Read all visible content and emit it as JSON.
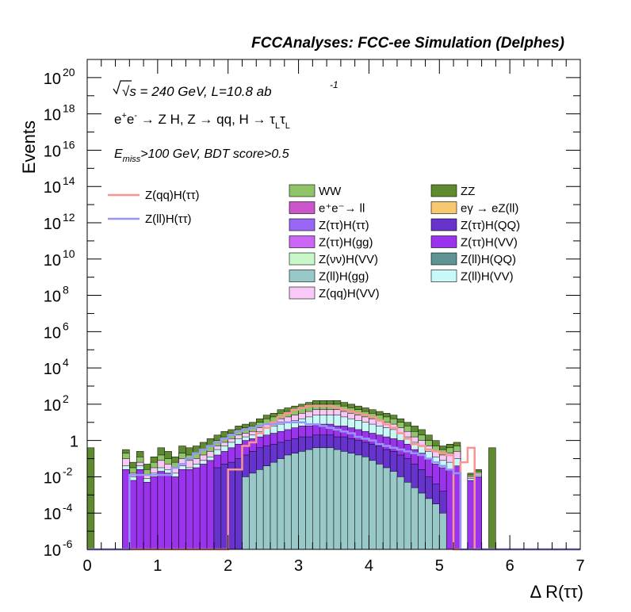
{
  "chart_data": {
    "type": "bar",
    "stacked": true,
    "title": "FCCAnalyses: FCC-ee Simulation (Delphes)",
    "xlabel": "Δ R(ττ)",
    "ylabel": "Events",
    "xlim": [
      0,
      7
    ],
    "ylim": [
      1e-06,
      1e+21
    ],
    "ylog": true,
    "grid": false,
    "legend_position": "upper-middle",
    "annotations": {
      "energy": "√s = 240 GeV, L=10.8 ab",
      "energy_exp": "-1",
      "process": "e⁺e⁻ → Z H, Z → qq, H → τLτL",
      "process_pre": "e",
      "process_mid": "e",
      "process_post": " → Z H, Z  → qq, H  → ",
      "tau": "τ",
      "tau_sub": "L",
      "cut_pre": "E",
      "cut_sub": "miss",
      "cut_post": ">100 GeV, BDT score>0.5"
    },
    "x_ticks": [
      "0",
      "1",
      "2",
      "3",
      "4",
      "5",
      "6",
      "7"
    ],
    "y_ticks": [
      "10^-6",
      "10^-4",
      "10^-2",
      "1",
      "10^2",
      "10^4",
      "10^6",
      "10^8",
      "10^10",
      "10^12",
      "10^14",
      "10^16",
      "10^18",
      "10^20"
    ],
    "y_tick_labels": [
      {
        "base": "10",
        "exp": "-6"
      },
      {
        "base": "10",
        "exp": "-4"
      },
      {
        "base": "10",
        "exp": "-2"
      },
      {
        "base": "1",
        "exp": ""
      },
      {
        "base": "10",
        "exp": "2"
      },
      {
        "base": "10",
        "exp": "4"
      },
      {
        "base": "10",
        "exp": "6"
      },
      {
        "base": "10",
        "exp": "8"
      },
      {
        "base": "10",
        "exp": "10"
      },
      {
        "base": "10",
        "exp": "12"
      },
      {
        "base": "10",
        "exp": "14"
      },
      {
        "base": "10",
        "exp": "16"
      },
      {
        "base": "10",
        "exp": "18"
      },
      {
        "base": "10",
        "exp": "20"
      }
    ],
    "bin_width": 0.1,
    "stack_top_log10": [
      -0.4,
      -6,
      -6,
      -6,
      -6,
      -0.5,
      -1.2,
      -0.6,
      -1.3,
      -0.9,
      -0.4,
      -0.6,
      -0.9,
      -0.3,
      -0.4,
      -0.3,
      -0.1,
      0.1,
      0.3,
      0.5,
      0.6,
      0.8,
      0.9,
      1.0,
      1.2,
      1.4,
      1.5,
      1.7,
      1.8,
      1.9,
      2.0,
      2.1,
      2.2,
      2.2,
      2.2,
      2.2,
      2.1,
      2.0,
      1.9,
      1.8,
      1.7,
      1.6,
      1.5,
      1.4,
      1.2,
      1.0,
      0.8,
      0.6,
      0.3,
      0.0,
      -0.3,
      -0.2,
      -0.1,
      -6,
      -1.8,
      -1.6,
      -6,
      -0.4,
      -6,
      -6,
      -6,
      -6,
      -6,
      -6,
      -6,
      -6,
      -6,
      -6,
      -6,
      -6
    ],
    "stack_layers": [
      {
        "name": "ZZ",
        "color": "#5e8a30",
        "log10": [
          -0.4,
          -6,
          -6,
          -6,
          -6,
          -0.5,
          -1.2,
          -0.6,
          -1.3,
          -0.9,
          -0.4,
          -0.6,
          -0.9,
          -0.3,
          -0.4,
          -0.3,
          -0.1,
          0.1,
          0.3,
          0.5,
          0.6,
          0.8,
          0.9,
          1.0,
          1.2,
          1.4,
          1.5,
          1.7,
          1.8,
          1.9,
          2.0,
          2.1,
          2.2,
          2.2,
          2.2,
          2.2,
          2.1,
          2.0,
          1.9,
          1.8,
          1.7,
          1.6,
          1.5,
          1.4,
          1.2,
          1.0,
          0.8,
          0.6,
          0.3,
          0.0,
          -0.3,
          -0.2,
          -0.1,
          -6,
          -1.8,
          -1.6,
          -6,
          -0.4,
          -6,
          -6,
          -6,
          -6,
          -6,
          -6,
          -6,
          -6,
          -6,
          -6,
          -6,
          -6
        ]
      },
      {
        "name": "WW",
        "color": "#8fc468",
        "log10": [
          -6,
          -6,
          -6,
          -6,
          -6,
          -0.7,
          -1.5,
          -0.9,
          -1.6,
          -1.2,
          -0.8,
          -1.0,
          -1.2,
          -0.7,
          -0.8,
          -0.7,
          -0.5,
          -0.3,
          0.0,
          0.2,
          0.4,
          0.6,
          0.7,
          0.8,
          1.0,
          1.2,
          1.3,
          1.5,
          1.6,
          1.7,
          1.8,
          1.9,
          2.0,
          2.0,
          2.0,
          2.0,
          1.9,
          1.8,
          1.7,
          1.6,
          1.5,
          1.4,
          1.3,
          1.2,
          1.0,
          0.8,
          0.5,
          0.3,
          0.0,
          -0.3,
          -0.5,
          -0.4,
          -0.3,
          -6,
          -1.9,
          -1.7,
          -6,
          -6,
          -6,
          -6,
          -6,
          -6,
          -6,
          -6,
          -6,
          -6,
          -6,
          -6,
          -6,
          -6
        ]
      },
      {
        "name": "Z(qq)H(VV)",
        "color": "#f8c8f6",
        "log10": [
          -6,
          -6,
          -6,
          -6,
          -6,
          -1.0,
          -1.8,
          -1.2,
          -1.9,
          -1.5,
          -1.1,
          -1.3,
          -1.5,
          -1.0,
          -1.1,
          -1.0,
          -0.8,
          -0.6,
          -0.3,
          -0.1,
          0.1,
          0.3,
          0.4,
          0.5,
          0.7,
          0.9,
          1.0,
          1.2,
          1.3,
          1.4,
          1.5,
          1.6,
          1.7,
          1.7,
          1.7,
          1.7,
          1.6,
          1.5,
          1.4,
          1.3,
          1.2,
          1.1,
          1.0,
          0.9,
          0.7,
          0.5,
          0.2,
          0.0,
          -0.3,
          -0.6,
          -0.8,
          -0.7,
          -0.6,
          -6,
          -2.0,
          -1.8,
          -6,
          -6,
          -6,
          -6,
          -6,
          -6,
          -6,
          -6,
          -6,
          -6,
          -6,
          -6,
          -6,
          -6
        ]
      },
      {
        "name": "Z(ll)H(VV)",
        "color": "#c8f8f8",
        "log10": [
          -6,
          -6,
          -6,
          -6,
          -6,
          -1.4,
          -2.0,
          -1.4,
          -2.1,
          -1.8,
          -1.5,
          -1.6,
          -1.8,
          -1.4,
          -1.5,
          -1.3,
          -1.1,
          -0.9,
          -0.5,
          -0.3,
          -0.1,
          0.1,
          0.2,
          0.3,
          0.5,
          0.7,
          0.8,
          0.9,
          1.0,
          1.1,
          1.2,
          1.3,
          1.4,
          1.4,
          1.4,
          1.4,
          1.3,
          1.2,
          1.1,
          1.0,
          0.9,
          0.8,
          0.7,
          0.6,
          0.4,
          0.2,
          -0.1,
          -0.3,
          -0.6,
          -0.9,
          -1.1,
          -1.2,
          -1.0,
          -6,
          -2.1,
          -1.9,
          -6,
          -6,
          -6,
          -6,
          -6,
          -6,
          -6,
          -6,
          -6,
          -6,
          -6,
          -6,
          -6,
          -6
        ]
      },
      {
        "name": "Z(ττ)H(VV)",
        "color": "#9a33ec",
        "log10": [
          -6,
          -6,
          -6,
          -6,
          -6,
          -1.6,
          -2.2,
          -1.6,
          -2.3,
          -2.0,
          -1.7,
          -1.8,
          -2.0,
          -1.6,
          -1.6,
          -1.5,
          -1.3,
          -1.1,
          -0.8,
          -0.6,
          -0.4,
          -0.2,
          0.0,
          0.1,
          0.2,
          0.3,
          0.4,
          0.5,
          0.6,
          0.7,
          0.8,
          0.8,
          0.9,
          0.9,
          0.9,
          0.8,
          0.8,
          0.7,
          0.6,
          0.5,
          0.4,
          0.3,
          0.2,
          0.1,
          0.0,
          -0.2,
          -0.5,
          -0.7,
          -1.0,
          -1.3,
          -1.5,
          -1.6,
          -1.4,
          -6,
          -2.2,
          -2.0,
          -6,
          -6,
          -6,
          -6,
          -6,
          -6,
          -6,
          -6,
          -6,
          -6,
          -6,
          -6,
          -6,
          -6
        ]
      },
      {
        "name": "Z(ττ)H(QQ)",
        "color": "#6633cc",
        "log10": [
          -6,
          -6,
          -6,
          -6,
          -6,
          -6,
          -6,
          -6,
          -6,
          -6,
          -6,
          -6,
          -6,
          -6,
          -6,
          -6,
          -6,
          -6,
          -1.5,
          -1.3,
          -1.2,
          -1.0,
          -0.8,
          -0.6,
          -0.4,
          -0.3,
          -0.2,
          -0.1,
          0.0,
          0.1,
          0.2,
          0.2,
          0.3,
          0.3,
          0.3,
          0.2,
          0.2,
          0.1,
          0.0,
          -0.1,
          -0.2,
          -0.3,
          -0.5,
          -0.6,
          -0.8,
          -1.0,
          -1.3,
          -1.6,
          -2.0,
          -2.4,
          -2.8,
          -6,
          -6,
          -6,
          -6,
          -6,
          -6,
          -6,
          -6,
          -6,
          -6,
          -6,
          -6,
          -6,
          -6,
          -6,
          -6,
          -6,
          -6,
          -6
        ]
      },
      {
        "name": "Z(ll)H(gg)",
        "color": "#99c8c8",
        "log10": [
          -6,
          -6,
          -6,
          -6,
          -6,
          -6,
          -6,
          -6,
          -6,
          -6,
          -6,
          -6,
          -6,
          -6,
          -6,
          -6,
          -6,
          -6,
          -6,
          -6,
          -6,
          -6,
          -2.0,
          -1.8,
          -1.6,
          -1.4,
          -1.2,
          -1.0,
          -0.8,
          -0.7,
          -0.6,
          -0.5,
          -0.4,
          -0.4,
          -0.4,
          -0.5,
          -0.6,
          -0.7,
          -0.8,
          -0.9,
          -1.1,
          -1.3,
          -1.5,
          -1.7,
          -2.0,
          -2.3,
          -2.6,
          -2.9,
          -3.2,
          -3.5,
          -4.0,
          -6,
          -6,
          -6,
          -6,
          -6,
          -6,
          -6,
          -6,
          -6,
          -6,
          -6,
          -6,
          -6,
          -6,
          -6,
          -6,
          -6,
          -6,
          -6
        ]
      }
    ],
    "series": [
      {
        "name": "Z(qq)H(ττ)",
        "color": "#f79494",
        "type": "step",
        "log10": [
          -6,
          -6,
          -6,
          -6,
          -6,
          -6,
          -6,
          -6,
          -6,
          -6,
          -6,
          -6,
          -6,
          -6,
          -6,
          -6,
          -6,
          -6,
          -6,
          -6,
          -1.6,
          -1.6,
          -0.3,
          -0.1,
          0.4,
          0.7,
          1.0,
          1.3,
          1.5,
          1.7,
          1.8,
          1.9,
          1.9,
          1.9,
          1.9,
          1.8,
          1.7,
          1.6,
          1.5,
          1.4,
          1.3,
          1.1,
          0.9,
          0.7,
          0.4,
          0.1,
          -0.2,
          -0.3,
          -0.5,
          -0.6,
          -0.7,
          -0.8,
          -6,
          -1.2,
          -0.4,
          -6,
          -6,
          -6,
          -6,
          -6,
          -6,
          -6,
          -6,
          -6,
          -6,
          -6,
          -6,
          -6,
          -6,
          -6
        ]
      },
      {
        "name": "Z(ll)H(ττ)",
        "color": "#9696f5",
        "type": "step",
        "log10": [
          -6,
          -6,
          -6,
          -6,
          -6,
          -6,
          -1.9,
          -1.9,
          -1.9,
          -1.9,
          -1.9,
          -1.9,
          -1.5,
          -1.3,
          -1.0,
          -0.7,
          -0.5,
          -0.3,
          -0.1,
          0.1,
          0.3,
          0.5,
          0.6,
          0.7,
          0.8,
          0.9,
          0.9,
          1.0,
          1.0,
          1.0,
          1.0,
          0.9,
          0.9,
          0.8,
          0.7,
          0.6,
          0.5,
          0.4,
          0.2,
          0.1,
          0.0,
          -0.2,
          -0.3,
          -0.4,
          -0.5,
          -0.6,
          -0.7,
          -0.8,
          -1.0,
          -1.2,
          -1.4,
          -1.6,
          -1.8,
          -6,
          -6,
          -6,
          -6,
          -6,
          -6,
          -6,
          -6,
          -6,
          -6,
          -6,
          -6,
          -6,
          -6,
          -6,
          -6,
          -6
        ]
      }
    ],
    "legend_left": [
      {
        "name": "Z(qq)H(ττ)",
        "color": "#f79494"
      },
      {
        "name": "Z(ll)H(ττ)",
        "color": "#9696f5"
      }
    ],
    "legend_right": [
      {
        "name": "WW",
        "color": "#8fc468"
      },
      {
        "name": "ZZ",
        "color": "#5e8a30"
      },
      {
        "name": "e⁺e⁻→ ll",
        "color": "#cc55cc"
      },
      {
        "name": "eγ → eZ(ll)",
        "color": "#f8c870"
      },
      {
        "name": "Z(ττ)H(ττ)",
        "color": "#9966f5"
      },
      {
        "name": "Z(ττ)H(QQ)",
        "color": "#6633cc"
      },
      {
        "name": "Z(ττ)H(gg)",
        "color": "#cc66f5"
      },
      {
        "name": "Z(ττ)H(VV)",
        "color": "#9a33ec"
      },
      {
        "name": "Z(νν)H(VV)",
        "color": "#c8f8c8"
      },
      {
        "name": "Z(ll)H(QQ)",
        "color": "#5e9494"
      },
      {
        "name": "Z(ll)H(gg)",
        "color": "#99c8c8"
      },
      {
        "name": "Z(ll)H(VV)",
        "color": "#c8f8f8"
      },
      {
        "name": "Z(qq)H(VV)",
        "color": "#f8c8f6"
      }
    ]
  }
}
